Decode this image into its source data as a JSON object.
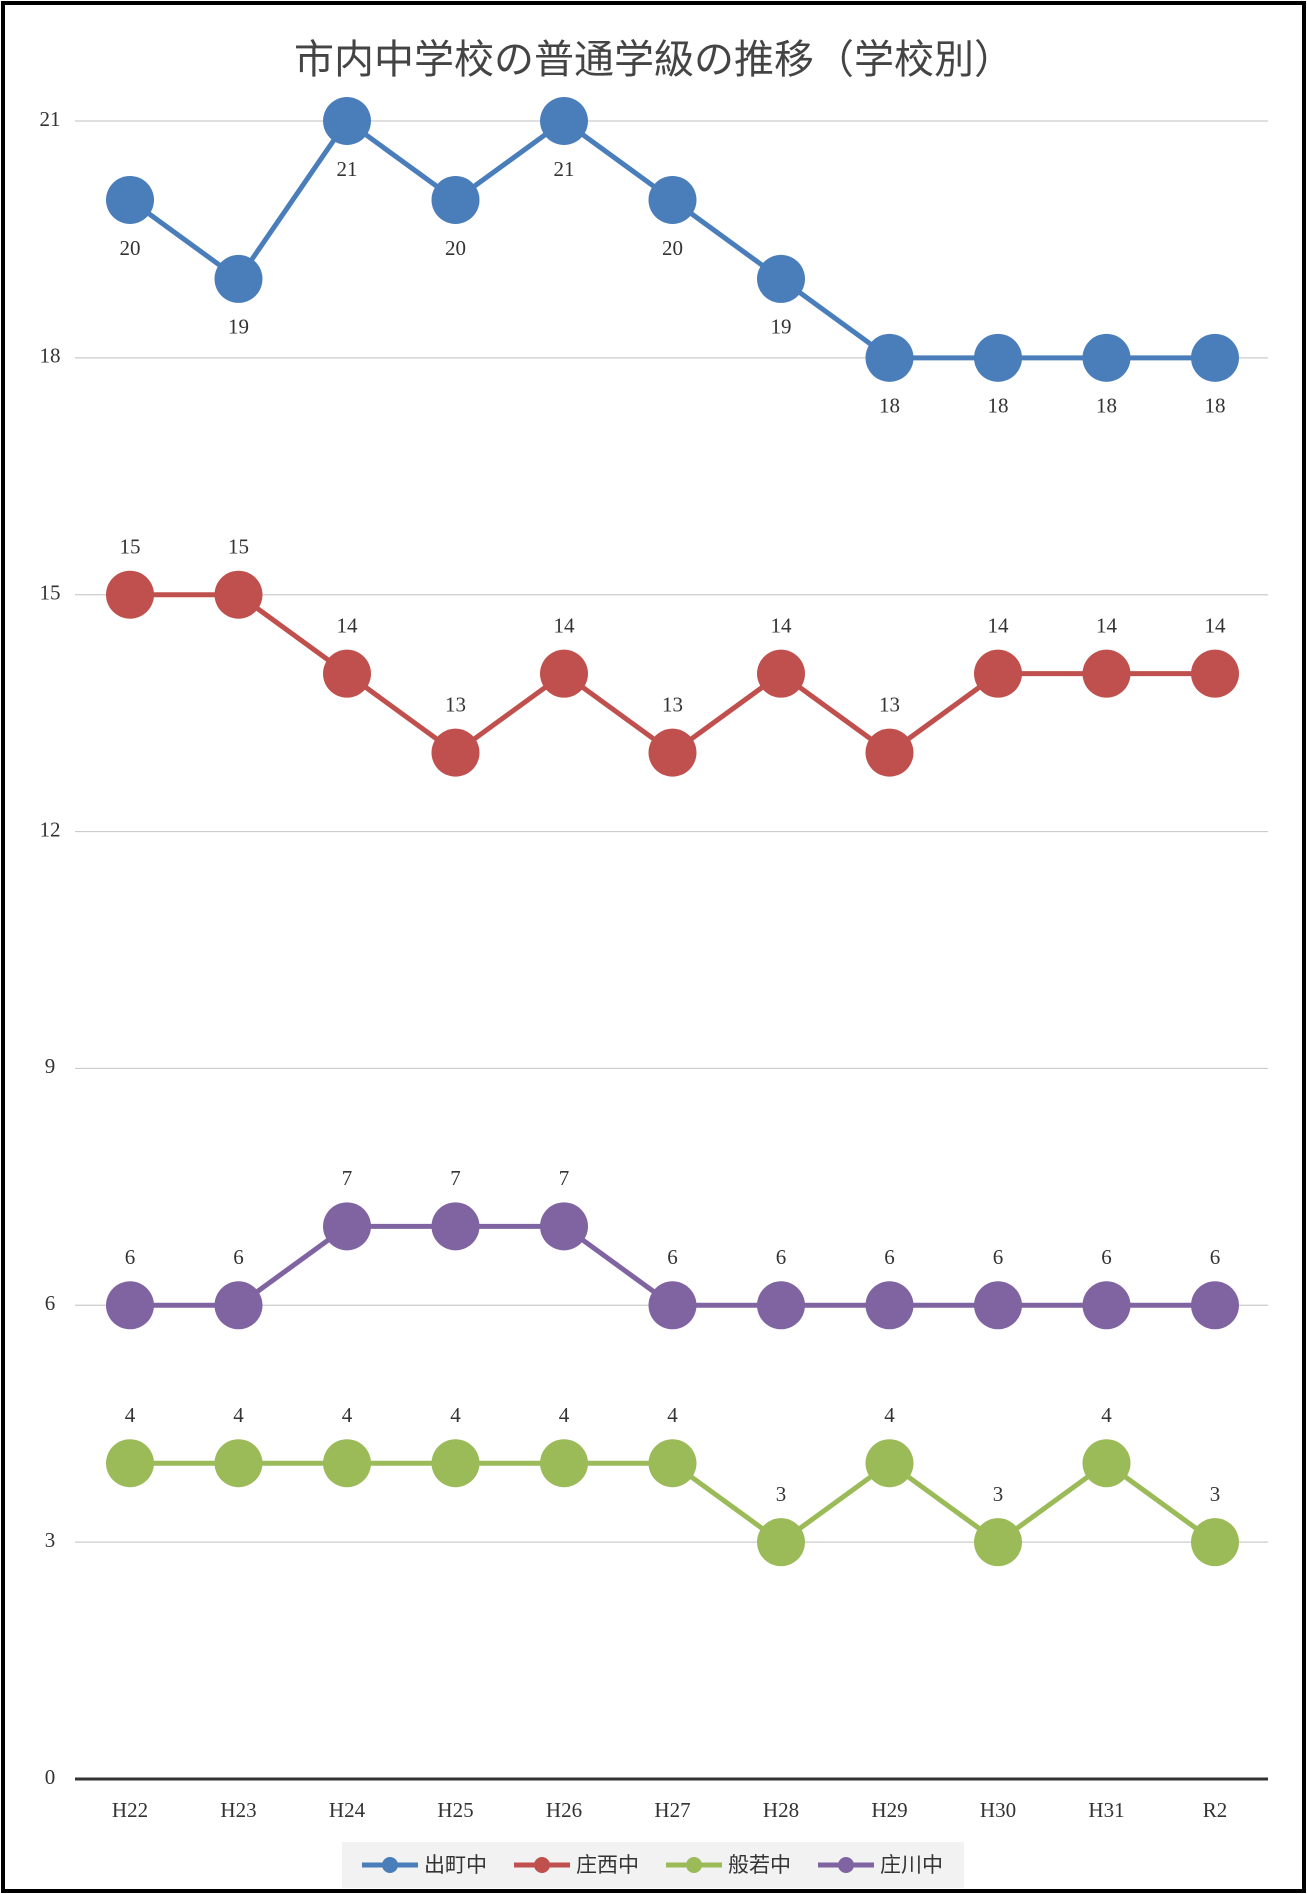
{
  "chart_data": {
    "type": "line",
    "title": "市内中学校の普通学級の推移（学校別）",
    "categories": [
      "H22",
      "H23",
      "H24",
      "H25",
      "H26",
      "H27",
      "H28",
      "H29",
      "H30",
      "H31",
      "R2"
    ],
    "series": [
      {
        "name": "出町中",
        "color": "#4a7ebb",
        "values": [
          20,
          19,
          21,
          20,
          21,
          20,
          19,
          18,
          18,
          18,
          18
        ]
      },
      {
        "name": "庄西中",
        "color": "#c0504d",
        "values": [
          15,
          15,
          14,
          13,
          14,
          13,
          14,
          13,
          14,
          14,
          14
        ]
      },
      {
        "name": "般若中",
        "color": "#9bbb59",
        "values": [
          4,
          4,
          4,
          4,
          4,
          4,
          3,
          4,
          3,
          4,
          3
        ]
      },
      {
        "name": "庄川中",
        "color": "#8064a2",
        "values": [
          6,
          6,
          7,
          7,
          7,
          6,
          6,
          6,
          6,
          6,
          6
        ]
      }
    ],
    "ylim": [
      0,
      21
    ],
    "yticks": [
      0,
      3,
      6,
      9,
      12,
      15,
      18,
      21
    ],
    "grid": true,
    "legend": "bottom"
  }
}
